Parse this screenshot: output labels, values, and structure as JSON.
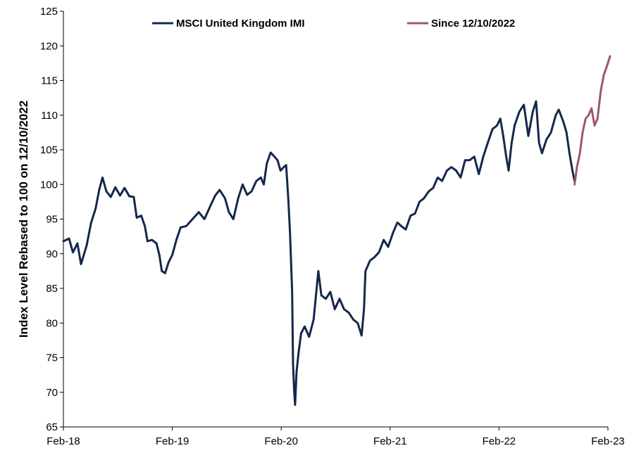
{
  "chart_data": {
    "type": "line",
    "title": "",
    "xlabel": "",
    "ylabel": "Index Level Rebased to 100 on 12/10/2022",
    "ylim": [
      65,
      125
    ],
    "yticks": [
      65,
      70,
      75,
      80,
      85,
      90,
      95,
      100,
      105,
      110,
      115,
      120,
      125
    ],
    "xlim": [
      "2018-02",
      "2023-02"
    ],
    "xticks": [
      "Feb-18",
      "Feb-19",
      "Feb-20",
      "Feb-21",
      "Feb-22",
      "Feb-23"
    ],
    "grid": false,
    "legend_position": "top",
    "series": [
      {
        "name": "MSCI United Kingdom IMI",
        "color": "#14284b",
        "points": [
          [
            "2018-02-01",
            91.8
          ],
          [
            "2018-02-20",
            92.2
          ],
          [
            "2018-03-05",
            90.2
          ],
          [
            "2018-03-20",
            91.5
          ],
          [
            "2018-04-01",
            88.5
          ],
          [
            "2018-04-20",
            91.2
          ],
          [
            "2018-05-05",
            94.5
          ],
          [
            "2018-05-20",
            96.5
          ],
          [
            "2018-06-01",
            99.2
          ],
          [
            "2018-06-12",
            101.0
          ],
          [
            "2018-06-25",
            99.0
          ],
          [
            "2018-07-10",
            98.2
          ],
          [
            "2018-07-25",
            99.6
          ],
          [
            "2018-08-10",
            98.4
          ],
          [
            "2018-08-25",
            99.5
          ],
          [
            "2018-09-10",
            98.3
          ],
          [
            "2018-09-25",
            98.2
          ],
          [
            "2018-10-05",
            95.2
          ],
          [
            "2018-10-20",
            95.5
          ],
          [
            "2018-11-01",
            94.0
          ],
          [
            "2018-11-10",
            91.8
          ],
          [
            "2018-11-25",
            92.0
          ],
          [
            "2018-12-10",
            91.5
          ],
          [
            "2018-12-20",
            89.8
          ],
          [
            "2018-12-28",
            87.5
          ],
          [
            "2019-01-08",
            87.2
          ],
          [
            "2019-01-20",
            88.8
          ],
          [
            "2019-02-01",
            89.8
          ],
          [
            "2019-02-15",
            92.0
          ],
          [
            "2019-03-01",
            93.8
          ],
          [
            "2019-03-20",
            94.0
          ],
          [
            "2019-04-10",
            95.0
          ],
          [
            "2019-05-01",
            96.0
          ],
          [
            "2019-05-20",
            95.0
          ],
          [
            "2019-06-10",
            97.0
          ],
          [
            "2019-06-25",
            98.4
          ],
          [
            "2019-07-10",
            99.2
          ],
          [
            "2019-07-28",
            98.0
          ],
          [
            "2019-08-10",
            96.0
          ],
          [
            "2019-08-25",
            95.0
          ],
          [
            "2019-09-10",
            98.0
          ],
          [
            "2019-09-25",
            100.0
          ],
          [
            "2019-10-10",
            98.5
          ],
          [
            "2019-10-25",
            99.0
          ],
          [
            "2019-11-10",
            100.5
          ],
          [
            "2019-11-25",
            101.0
          ],
          [
            "2019-12-05",
            100.0
          ],
          [
            "2019-12-15",
            103.0
          ],
          [
            "2019-12-28",
            104.6
          ],
          [
            "2020-01-10",
            104.0
          ],
          [
            "2020-01-20",
            103.5
          ],
          [
            "2020-01-30",
            102.0
          ],
          [
            "2020-02-10",
            102.5
          ],
          [
            "2020-02-18",
            102.8
          ],
          [
            "2020-02-25",
            98.0
          ],
          [
            "2020-03-02",
            93.0
          ],
          [
            "2020-03-09",
            84.5
          ],
          [
            "2020-03-12",
            74.0
          ],
          [
            "2020-03-16",
            70.0
          ],
          [
            "2020-03-19",
            68.2
          ],
          [
            "2020-03-24",
            73.0
          ],
          [
            "2020-03-30",
            75.5
          ],
          [
            "2020-04-08",
            78.5
          ],
          [
            "2020-04-20",
            79.5
          ],
          [
            "2020-05-05",
            78.0
          ],
          [
            "2020-05-20",
            80.5
          ],
          [
            "2020-06-05",
            87.5
          ],
          [
            "2020-06-15",
            84.0
          ],
          [
            "2020-06-30",
            83.5
          ],
          [
            "2020-07-15",
            84.5
          ],
          [
            "2020-07-30",
            82.0
          ],
          [
            "2020-08-15",
            83.5
          ],
          [
            "2020-08-30",
            82.0
          ],
          [
            "2020-09-15",
            81.5
          ],
          [
            "2020-09-30",
            80.5
          ],
          [
            "2020-10-15",
            80.0
          ],
          [
            "2020-10-28",
            78.2
          ],
          [
            "2020-11-05",
            82.0
          ],
          [
            "2020-11-10",
            87.5
          ],
          [
            "2020-11-25",
            89.0
          ],
          [
            "2020-12-10",
            89.5
          ],
          [
            "2020-12-25",
            90.2
          ],
          [
            "2021-01-10",
            92.0
          ],
          [
            "2021-01-25",
            91.0
          ],
          [
            "2021-02-10",
            93.0
          ],
          [
            "2021-02-25",
            94.5
          ],
          [
            "2021-03-10",
            94.0
          ],
          [
            "2021-03-25",
            93.5
          ],
          [
            "2021-04-10",
            95.5
          ],
          [
            "2021-04-25",
            95.8
          ],
          [
            "2021-05-10",
            97.5
          ],
          [
            "2021-05-25",
            98.0
          ],
          [
            "2021-06-10",
            99.0
          ],
          [
            "2021-06-25",
            99.5
          ],
          [
            "2021-07-10",
            101.0
          ],
          [
            "2021-07-25",
            100.5
          ],
          [
            "2021-08-10",
            102.0
          ],
          [
            "2021-08-25",
            102.5
          ],
          [
            "2021-09-10",
            102.0
          ],
          [
            "2021-09-25",
            101.0
          ],
          [
            "2021-10-10",
            103.5
          ],
          [
            "2021-10-25",
            103.5
          ],
          [
            "2021-11-10",
            104.0
          ],
          [
            "2021-11-25",
            101.5
          ],
          [
            "2021-12-10",
            104.0
          ],
          [
            "2021-12-25",
            106.0
          ],
          [
            "2022-01-10",
            108.0
          ],
          [
            "2022-01-25",
            108.5
          ],
          [
            "2022-02-05",
            109.5
          ],
          [
            "2022-02-15",
            107.0
          ],
          [
            "2022-02-25",
            104.0
          ],
          [
            "2022-03-05",
            102.0
          ],
          [
            "2022-03-15",
            106.0
          ],
          [
            "2022-03-25",
            108.5
          ],
          [
            "2022-04-10",
            110.5
          ],
          [
            "2022-04-25",
            111.5
          ],
          [
            "2022-05-10",
            107.0
          ],
          [
            "2022-05-25",
            110.5
          ],
          [
            "2022-06-05",
            112.0
          ],
          [
            "2022-06-15",
            106.0
          ],
          [
            "2022-06-25",
            104.5
          ],
          [
            "2022-07-10",
            106.5
          ],
          [
            "2022-07-25",
            107.5
          ],
          [
            "2022-08-10",
            110.0
          ],
          [
            "2022-08-20",
            110.8
          ],
          [
            "2022-09-05",
            109.0
          ],
          [
            "2022-09-15",
            107.5
          ],
          [
            "2022-09-25",
            104.5
          ],
          [
            "2022-10-05",
            102.0
          ],
          [
            "2022-10-12",
            100.5
          ]
        ]
      },
      {
        "name": "Since 12/10/2022",
        "color": "#9c5867",
        "points": [
          [
            "2022-10-12",
            100.0
          ],
          [
            "2022-10-20",
            102.5
          ],
          [
            "2022-10-30",
            104.5
          ],
          [
            "2022-11-08",
            107.5
          ],
          [
            "2022-11-18",
            109.5
          ],
          [
            "2022-11-28",
            110.0
          ],
          [
            "2022-12-08",
            111.0
          ],
          [
            "2022-12-18",
            108.5
          ],
          [
            "2022-12-28",
            109.5
          ],
          [
            "2023-01-08",
            113.5
          ],
          [
            "2023-01-18",
            115.8
          ],
          [
            "2023-01-28",
            117.0
          ],
          [
            "2023-02-08",
            118.5
          ]
        ]
      }
    ]
  }
}
